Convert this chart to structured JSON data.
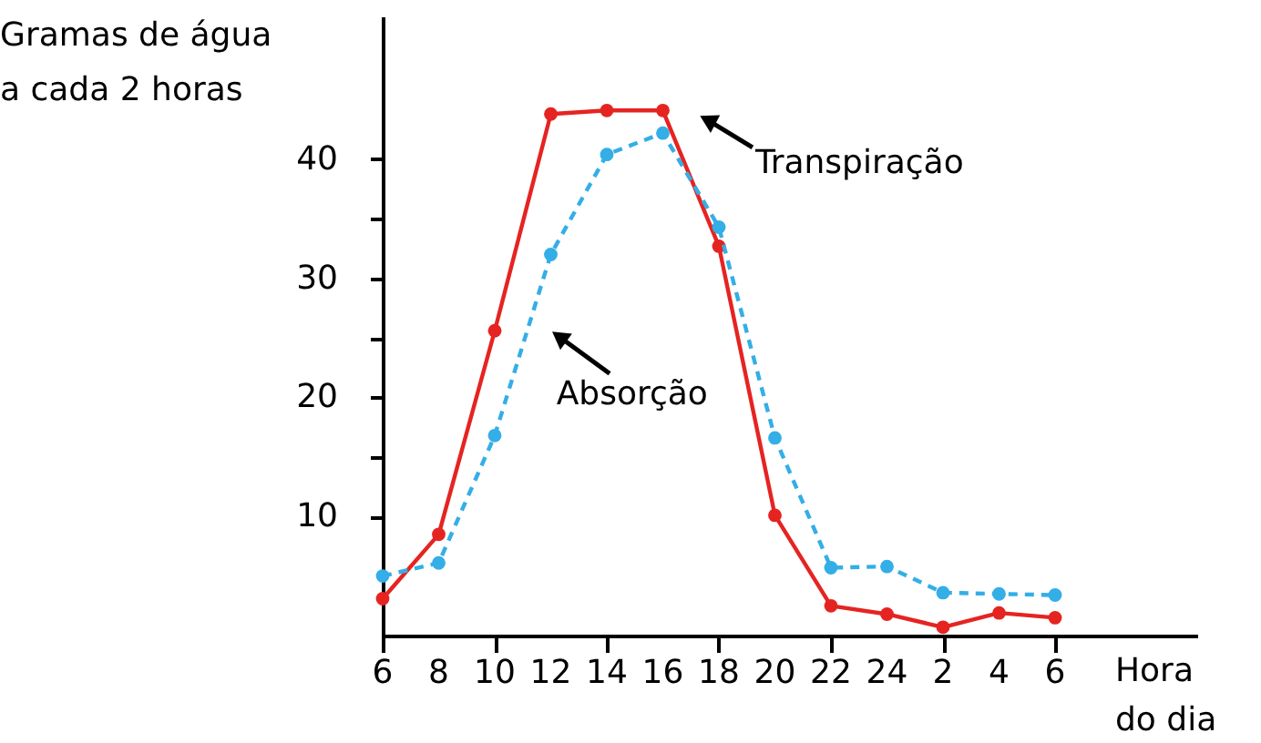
{
  "chart_data": {
    "type": "line",
    "xlabel": "Hora\ndo dia",
    "ylabel": "Gramas de água\na cada 2 horas",
    "categories": [
      "6",
      "8",
      "10",
      "12",
      "14",
      "16",
      "18",
      "20",
      "22",
      "24",
      "2",
      "4",
      "6"
    ],
    "ylim": [
      0,
      52
    ],
    "yticks": [
      10,
      {
        "value": 15,
        "label": null
      },
      20,
      {
        "value": 25,
        "label": null
      },
      30,
      {
        "value": 35,
        "label": null
      },
      40
    ],
    "marker": "circle",
    "grid": false,
    "series": [
      {
        "name": "Transpiração",
        "color": "#e52421",
        "line_style": "solid",
        "values": [
          3.1,
          8.5,
          25.6,
          43.8,
          44.1,
          44.1,
          32.7,
          10.1,
          2.5,
          1.8,
          0.7,
          1.9,
          1.5
        ]
      },
      {
        "name": "Absorção",
        "color": "#34aee6",
        "line_style": "dashed",
        "values": [
          5.0,
          6.1,
          16.8,
          32.0,
          40.4,
          42.2,
          34.3,
          16.6,
          5.7,
          5.8,
          3.6,
          3.5,
          3.4
        ]
      }
    ]
  }
}
